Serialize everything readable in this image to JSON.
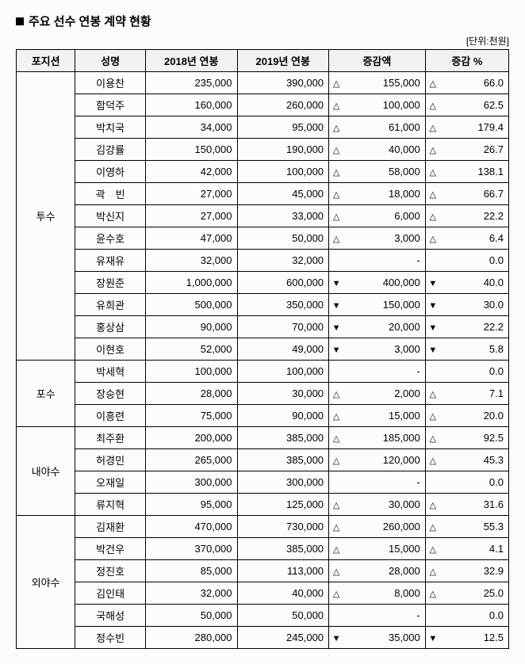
{
  "title": "주요 선수 연봉 계약 현황",
  "unit": "[단위:천원]",
  "columns": {
    "position": "포지션",
    "name": "성명",
    "salary2018": "2018년 연봉",
    "salary2019": "2019년 연봉",
    "diff": "증감액",
    "pct": "증감 %"
  },
  "symbols": {
    "up": "△",
    "down": "▼",
    "none": "-"
  },
  "groups": [
    {
      "key": "pitcher",
      "label": "투수",
      "rows": [
        {
          "name": "이용찬",
          "s18": "235,000",
          "s19": "390,000",
          "dir": "up",
          "diff": "155,000",
          "pct": "66.0"
        },
        {
          "name": "함덕주",
          "s18": "160,000",
          "s19": "260,000",
          "dir": "up",
          "diff": "100,000",
          "pct": "62.5"
        },
        {
          "name": "박치국",
          "s18": "34,000",
          "s19": "95,000",
          "dir": "up",
          "diff": "61,000",
          "pct": "179.4"
        },
        {
          "name": "김강률",
          "s18": "150,000",
          "s19": "190,000",
          "dir": "up",
          "diff": "40,000",
          "pct": "26.7"
        },
        {
          "name": "이영하",
          "s18": "42,000",
          "s19": "100,000",
          "dir": "up",
          "diff": "58,000",
          "pct": "138.1"
        },
        {
          "name": "곽　빈",
          "s18": "27,000",
          "s19": "45,000",
          "dir": "up",
          "diff": "18,000",
          "pct": "66.7"
        },
        {
          "name": "박신지",
          "s18": "27,000",
          "s19": "33,000",
          "dir": "up",
          "diff": "6,000",
          "pct": "22.2"
        },
        {
          "name": "윤수호",
          "s18": "47,000",
          "s19": "50,000",
          "dir": "up",
          "diff": "3,000",
          "pct": "6.4"
        },
        {
          "name": "유재유",
          "s18": "32,000",
          "s19": "32,000",
          "dir": "none",
          "diff": "-",
          "pct": "0.0"
        },
        {
          "name": "장원준",
          "s18": "1,000,000",
          "s19": "600,000",
          "dir": "down",
          "diff": "400,000",
          "pct": "40.0"
        },
        {
          "name": "유희관",
          "s18": "500,000",
          "s19": "350,000",
          "dir": "down",
          "diff": "150,000",
          "pct": "30.0"
        },
        {
          "name": "홍상삼",
          "s18": "90,000",
          "s19": "70,000",
          "dir": "down",
          "diff": "20,000",
          "pct": "22.2"
        },
        {
          "name": "이현호",
          "s18": "52,000",
          "s19": "49,000",
          "dir": "down",
          "diff": "3,000",
          "pct": "5.8"
        }
      ]
    },
    {
      "key": "catcher",
      "label": "포수",
      "rows": [
        {
          "name": "박세혁",
          "s18": "100,000",
          "s19": "100,000",
          "dir": "none",
          "diff": "-",
          "pct": "0.0"
        },
        {
          "name": "장승현",
          "s18": "28,000",
          "s19": "30,000",
          "dir": "up",
          "diff": "2,000",
          "pct": "7.1"
        },
        {
          "name": "이흥련",
          "s18": "75,000",
          "s19": "90,000",
          "dir": "up",
          "diff": "15,000",
          "pct": "20.0"
        }
      ]
    },
    {
      "key": "infielder",
      "label": "내야수",
      "rows": [
        {
          "name": "최주환",
          "s18": "200,000",
          "s19": "385,000",
          "dir": "up",
          "diff": "185,000",
          "pct": "92.5"
        },
        {
          "name": "허경민",
          "s18": "265,000",
          "s19": "385,000",
          "dir": "up",
          "diff": "120,000",
          "pct": "45.3"
        },
        {
          "name": "오재일",
          "s18": "300,000",
          "s19": "300,000",
          "dir": "none",
          "diff": "-",
          "pct": "0.0"
        },
        {
          "name": "류지혁",
          "s18": "95,000",
          "s19": "125,000",
          "dir": "up",
          "diff": "30,000",
          "pct": "31.6"
        }
      ]
    },
    {
      "key": "outfielder",
      "label": "외야수",
      "rows": [
        {
          "name": "김재환",
          "s18": "470,000",
          "s19": "730,000",
          "dir": "up",
          "diff": "260,000",
          "pct": "55.3"
        },
        {
          "name": "박건우",
          "s18": "370,000",
          "s19": "385,000",
          "dir": "up",
          "diff": "15,000",
          "pct": "4.1"
        },
        {
          "name": "정진호",
          "s18": "85,000",
          "s19": "113,000",
          "dir": "up",
          "diff": "28,000",
          "pct": "32.9"
        },
        {
          "name": "김인태",
          "s18": "32,000",
          "s19": "40,000",
          "dir": "up",
          "diff": "8,000",
          "pct": "25.0"
        },
        {
          "name": "국해성",
          "s18": "50,000",
          "s19": "50,000",
          "dir": "none",
          "diff": "-",
          "pct": "0.0"
        },
        {
          "name": "정수빈",
          "s18": "280,000",
          "s19": "245,000",
          "dir": "down",
          "diff": "35,000",
          "pct": "12.5"
        }
      ]
    }
  ]
}
